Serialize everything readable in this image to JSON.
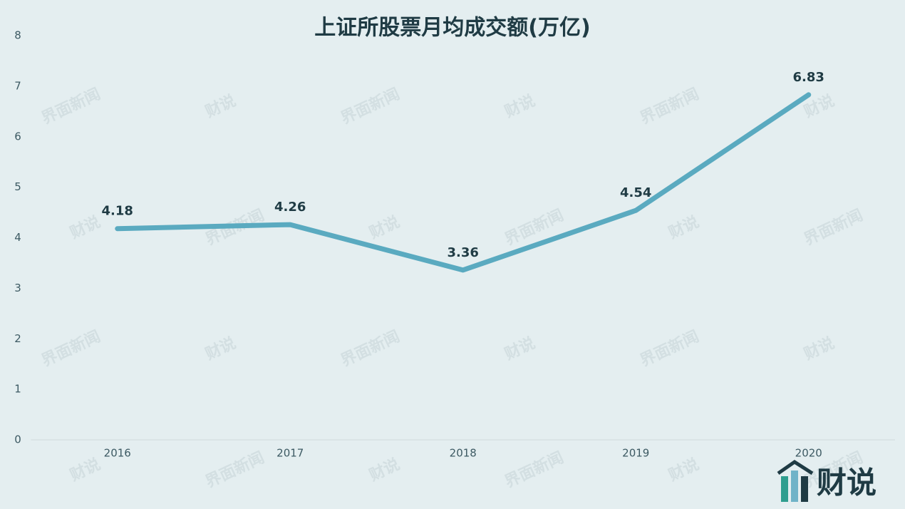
{
  "chart_data": {
    "type": "line",
    "title": "上证所股票月均成交额(万亿)",
    "categories": [
      "2016",
      "2017",
      "2018",
      "2019",
      "2020"
    ],
    "values": [
      4.18,
      4.26,
      3.36,
      4.54,
      6.83
    ],
    "color": "#5aaac0",
    "ylim": [
      0,
      8
    ],
    "yticks": [
      0,
      1,
      2,
      3,
      4,
      5,
      6,
      7,
      8
    ],
    "grid": false
  },
  "watermarks": [
    "界面新闻",
    "财说"
  ],
  "logo": "财说"
}
